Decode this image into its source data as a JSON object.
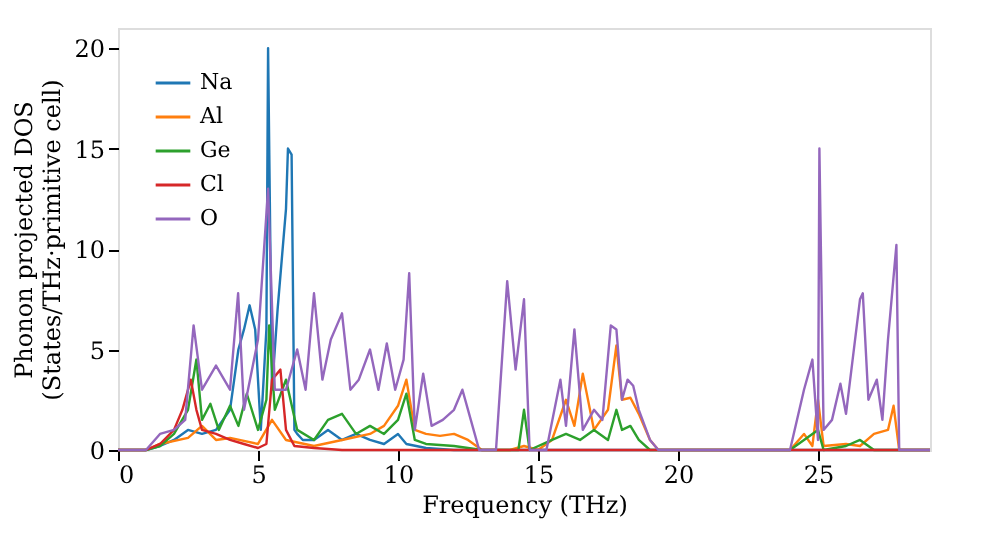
{
  "chart_data": {
    "type": "line",
    "xlabel": "Frequency (THz)",
    "ylabel": "Phonon projected DOS\n(States/THz·primitive cell)",
    "xlim": [
      0,
      29
    ],
    "xticks": [
      0,
      5,
      10,
      15,
      20,
      25
    ],
    "ylim": [
      0,
      21
    ],
    "yticks": [
      0,
      5,
      10,
      15,
      20
    ],
    "legend": "top left",
    "grid": false,
    "line_style": "solid",
    "marker": "none",
    "series": [
      {
        "name": "Na",
        "color": "#1f77b4",
        "x": [
          0,
          1,
          1.5,
          2,
          2.5,
          3,
          3.5,
          4,
          4.3,
          4.5,
          4.7,
          4.9,
          5.1,
          5.3,
          5.36,
          5.5,
          5.7,
          6.0,
          6.07,
          6.2,
          6.3,
          6.4,
          6.6,
          7,
          7.5,
          8,
          8.5,
          9,
          9.5,
          10,
          10.3,
          11,
          12,
          29
        ],
        "values": [
          0,
          0,
          0.2,
          0.5,
          1,
          0.8,
          1,
          2,
          5,
          6,
          7.2,
          6,
          1,
          6,
          20,
          3,
          7,
          12,
          15,
          14.7,
          1,
          0.8,
          0.5,
          0.5,
          1,
          0.5,
          0.8,
          0.5,
          0.3,
          0.8,
          0.3,
          0.1,
          0,
          0
        ]
      },
      {
        "name": "Al",
        "color": "#ff7f0e",
        "x": [
          0,
          1,
          1.5,
          2.5,
          3,
          3.5,
          4,
          5,
          5.5,
          6,
          7,
          8,
          9,
          9.5,
          10,
          10.3,
          10.6,
          11,
          11.5,
          12,
          12.5,
          13,
          14,
          14.5,
          15,
          15.5,
          16,
          16.3,
          16.6,
          17,
          17.5,
          17.8,
          18,
          18.3,
          18.6,
          19,
          19.3,
          24,
          24.5,
          24.8,
          25,
          25.2,
          26,
          26.5,
          27,
          27.5,
          27.7,
          27.9,
          29
        ],
        "values": [
          0,
          0,
          0.3,
          0.6,
          1.2,
          0.5,
          0.6,
          0.3,
          1.5,
          0.5,
          0.2,
          0.5,
          0.8,
          1.2,
          2.2,
          3.5,
          1,
          0.8,
          0.7,
          0.8,
          0.5,
          0,
          0,
          0.2,
          0,
          0.5,
          2.5,
          1.2,
          3.8,
          1,
          2,
          5.2,
          2.5,
          2.6,
          1.8,
          0.5,
          0,
          0,
          0.8,
          0.2,
          2.5,
          0.2,
          0.3,
          0.2,
          0.8,
          1,
          2.2,
          0,
          0
        ]
      },
      {
        "name": "Ge",
        "color": "#2ca02c",
        "x": [
          0,
          1,
          1.5,
          2,
          2.5,
          2.8,
          3,
          3.3,
          3.6,
          4,
          4.3,
          4.6,
          5,
          5.3,
          5.4,
          5.6,
          6,
          6.4,
          7,
          7.5,
          8,
          8.5,
          9,
          9.5,
          10,
          10.3,
          10.6,
          11,
          12,
          13,
          14.3,
          14.5,
          14.7,
          15.5,
          16,
          16.5,
          17,
          17.5,
          17.8,
          18,
          18.3,
          18.6,
          19,
          24,
          25,
          25.2,
          26,
          26.5,
          27,
          27.9,
          29
        ],
        "values": [
          0,
          0,
          0.2,
          0.8,
          2,
          4.5,
          1.5,
          2.3,
          1,
          2.2,
          1.2,
          2.8,
          1,
          2.5,
          6.2,
          2,
          3.5,
          1,
          0.5,
          1.5,
          1.8,
          0.8,
          1.2,
          0.8,
          1.5,
          2.8,
          0.5,
          0.3,
          0.2,
          0,
          0,
          2,
          0,
          0.5,
          0.8,
          0.5,
          1,
          0.5,
          2,
          1,
          1.2,
          0.5,
          0,
          0,
          1,
          0,
          0.2,
          0.5,
          0,
          0,
          0
        ]
      },
      {
        "name": "Cl",
        "color": "#d62728",
        "x": [
          0,
          1,
          1.5,
          2,
          2.3,
          2.6,
          2.8,
          3,
          3.5,
          4,
          4.5,
          5,
          5.3,
          5.5,
          5.8,
          6,
          6.3,
          7,
          8,
          29
        ],
        "values": [
          0,
          0,
          0.3,
          1,
          2,
          3.5,
          2,
          1,
          0.8,
          0.5,
          0.3,
          0.1,
          0.3,
          3.5,
          4,
          1,
          0.2,
          0.1,
          0,
          0
        ]
      },
      {
        "name": "O",
        "color": "#9467bd",
        "x": [
          0,
          1,
          1.5,
          2,
          2.4,
          2.7,
          3.0,
          3.5,
          4.0,
          4.29,
          4.5,
          5.0,
          5.36,
          5.6,
          6.0,
          6.4,
          6.7,
          7.0,
          7.3,
          7.6,
          8.0,
          8.3,
          8.6,
          9.0,
          9.3,
          9.6,
          9.9,
          10.2,
          10.4,
          10.6,
          10.9,
          11.2,
          11.6,
          12,
          12.3,
          12.6,
          12.9,
          13.5,
          13.9,
          14.2,
          14.5,
          14.7,
          15.3,
          15.8,
          16,
          16.3,
          16.6,
          17,
          17.3,
          17.6,
          17.8,
          18,
          18.2,
          18.4,
          18.6,
          19,
          19.3,
          24,
          24.5,
          24.8,
          25,
          25.05,
          25.2,
          25.5,
          25.8,
          26,
          26.5,
          26.6,
          26.8,
          27.1,
          27.3,
          27.5,
          27.8,
          27.9,
          29
        ],
        "values": [
          0,
          0,
          0.8,
          1,
          1.5,
          6.2,
          3,
          4.2,
          3,
          7.8,
          2,
          5.5,
          13,
          3,
          3,
          5,
          3,
          7.8,
          3.5,
          5.5,
          6.8,
          3,
          3.5,
          5,
          3,
          5.3,
          3,
          4.5,
          8.8,
          1,
          3.8,
          1.2,
          1.5,
          2,
          3,
          1.5,
          0,
          0,
          8.4,
          4,
          7.5,
          0,
          0,
          3.5,
          1.2,
          6,
          1,
          2,
          1.5,
          6.2,
          6,
          2.5,
          3.5,
          3.2,
          2,
          0.5,
          0,
          0,
          3,
          4.5,
          0.5,
          15,
          1,
          1.5,
          3.3,
          1.8,
          7.5,
          7.8,
          2.5,
          3.5,
          1.5,
          5.5,
          10.2,
          0,
          0
        ]
      }
    ]
  }
}
